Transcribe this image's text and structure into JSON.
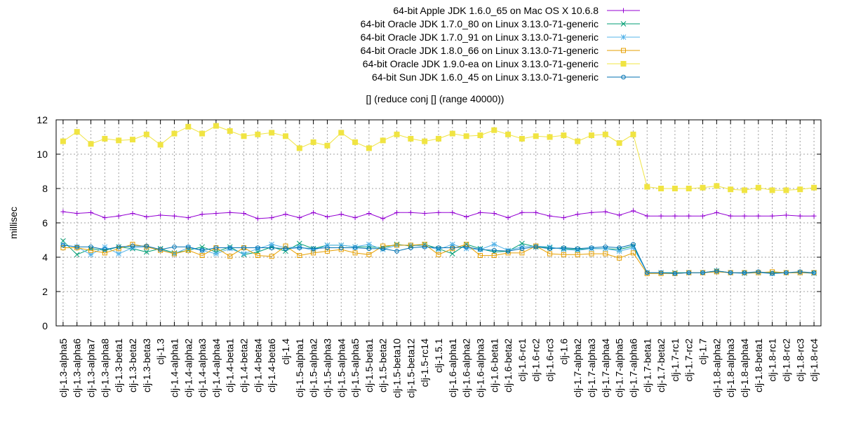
{
  "chart_data": {
    "type": "line",
    "title": "[] (reduce conj [] (range 40000))",
    "xlabel": "",
    "ylabel": "millisec",
    "ylim": [
      0,
      12
    ],
    "yticks": [
      0,
      2,
      4,
      6,
      8,
      10,
      12
    ],
    "grid": true,
    "legend_position": "top-right",
    "categories": [
      "clj-1.3-alpha5",
      "clj-1.3-alpha6",
      "clj-1.3-alpha7",
      "clj-1.3-alpha8",
      "clj-1.3-beta1",
      "clj-1.3-beta2",
      "clj-1.3-beta3",
      "clj-1.3",
      "clj-1.4-alpha1",
      "clj-1.4-alpha2",
      "clj-1.4-alpha3",
      "clj-1.4-alpha4",
      "clj-1.4-beta1",
      "clj-1.4-beta2",
      "clj-1.4-beta4",
      "clj-1.4-beta6",
      "clj-1.4",
      "clj-1.5-alpha1",
      "clj-1.5-alpha2",
      "clj-1.5-alpha3",
      "clj-1.5-alpha4",
      "clj-1.5-alpha5",
      "clj-1.5-beta1",
      "clj-1.5-beta2",
      "clj-1.5-beta10",
      "clj-1.5-beta12",
      "clj-1.5-rc14",
      "clj-1.5.1",
      "clj-1.6-alpha1",
      "clj-1.6-alpha2",
      "clj-1.6-alpha3",
      "clj-1.6-beta1",
      "clj-1.6-beta2",
      "clj-1.6-rc1",
      "clj-1.6-rc2",
      "clj-1.6-rc3",
      "clj-1.6",
      "clj-1.7-alpha2",
      "clj-1.7-alpha3",
      "clj-1.7-alpha4",
      "clj-1.7-alpha5",
      "clj-1.7-alpha6",
      "clj-1.7-beta1",
      "clj-1.7-beta2",
      "clj-1.7-rc1",
      "clj-1.7-rc2",
      "clj-1.7",
      "clj-1.8-alpha2",
      "clj-1.8-alpha3",
      "clj-1.8-alpha4",
      "clj-1.8-beta1",
      "clj-1.8-rc1",
      "clj-1.8-rc2",
      "clj-1.8-rc3",
      "clj-1.8-rc4"
    ],
    "series": [
      {
        "name": "64-bit Apple JDK 1.6.0_65 on Mac OS X 10.6.8",
        "color": "#9400d3",
        "marker": "plus",
        "values": [
          6.65,
          6.55,
          6.6,
          6.3,
          6.4,
          6.55,
          6.35,
          6.45,
          6.4,
          6.3,
          6.5,
          6.55,
          6.6,
          6.55,
          6.25,
          6.3,
          6.5,
          6.3,
          6.6,
          6.35,
          6.5,
          6.3,
          6.55,
          6.25,
          6.6,
          6.6,
          6.55,
          6.6,
          6.6,
          6.35,
          6.6,
          6.55,
          6.3,
          6.6,
          6.6,
          6.4,
          6.3,
          6.5,
          6.6,
          6.65,
          6.45,
          6.7,
          6.4,
          6.4,
          6.4,
          6.4,
          6.4,
          6.6,
          6.4,
          6.4,
          6.4,
          6.4,
          6.45,
          6.4,
          6.4
        ]
      },
      {
        "name": "64-bit Oracle JDK 1.7.0_80 on Linux 3.13.0-71-generic",
        "color": "#009e73",
        "marker": "x",
        "values": [
          4.95,
          4.15,
          4.5,
          4.4,
          4.6,
          4.5,
          4.3,
          4.5,
          4.25,
          4.4,
          4.6,
          4.3,
          4.6,
          4.15,
          4.3,
          4.6,
          4.35,
          4.8,
          4.5,
          4.7,
          4.7,
          4.6,
          4.6,
          4.55,
          4.75,
          4.65,
          4.75,
          4.5,
          4.2,
          4.75,
          4.5,
          4.3,
          4.35,
          4.8,
          4.6,
          4.55,
          4.5,
          4.45,
          4.5,
          4.5,
          4.45,
          4.65,
          3.1,
          3.1,
          3.1,
          3.1,
          3.1,
          3.2,
          3.1,
          3.1,
          3.1,
          3.1,
          3.1,
          3.1,
          3.1
        ]
      },
      {
        "name": "64-bit Oracle JDK 1.7.0_91 on Linux 3.13.0-71-generic",
        "color": "#56b4e9",
        "marker": "star",
        "values": [
          4.7,
          4.6,
          4.15,
          4.6,
          4.2,
          4.55,
          4.6,
          4.45,
          4.2,
          4.55,
          4.4,
          4.2,
          4.5,
          4.2,
          4.5,
          4.75,
          4.55,
          4.6,
          4.4,
          4.7,
          4.7,
          4.6,
          4.75,
          4.45,
          4.7,
          4.7,
          4.65,
          4.45,
          4.75,
          4.5,
          4.45,
          4.75,
          4.4,
          4.6,
          4.65,
          4.6,
          4.45,
          4.4,
          4.5,
          4.5,
          4.35,
          4.55,
          3.1,
          3.1,
          3.05,
          3.1,
          3.1,
          3.15,
          3.1,
          3.05,
          3.1,
          3.05,
          3.1,
          3.1,
          3.05
        ]
      },
      {
        "name": "64-bit Oracle JDK 1.8.0_66 on Linux 3.13.0-71-generic",
        "color": "#e69f00",
        "marker": "open-square",
        "values": [
          4.55,
          4.55,
          4.4,
          4.25,
          4.5,
          4.75,
          4.6,
          4.4,
          4.2,
          4.4,
          4.1,
          4.55,
          4.05,
          4.55,
          4.1,
          4.05,
          4.65,
          4.1,
          4.25,
          4.35,
          4.45,
          4.25,
          4.15,
          4.65,
          4.7,
          4.7,
          4.75,
          4.15,
          4.5,
          4.75,
          4.1,
          4.1,
          4.25,
          4.25,
          4.65,
          4.2,
          4.15,
          4.15,
          4.2,
          4.2,
          3.95,
          4.25,
          3.05,
          3.05,
          3.05,
          3.1,
          3.1,
          3.15,
          3.1,
          3.1,
          3.1,
          3.15,
          3.1,
          3.1,
          3.1
        ]
      },
      {
        "name": "64-bit Oracle JDK 1.9.0-ea on Linux 3.13.0-71-generic",
        "color": "#f0e442",
        "marker": "filled-square",
        "values": [
          10.75,
          11.3,
          10.6,
          10.9,
          10.8,
          10.85,
          11.15,
          10.55,
          11.2,
          11.6,
          11.2,
          11.65,
          11.35,
          11.05,
          11.15,
          11.25,
          11.05,
          10.35,
          10.7,
          10.5,
          11.25,
          10.7,
          10.35,
          10.8,
          11.15,
          10.9,
          10.75,
          10.9,
          11.2,
          11.05,
          11.1,
          11.4,
          11.15,
          10.9,
          11.05,
          11.0,
          11.1,
          10.75,
          11.1,
          11.15,
          10.65,
          11.15,
          8.1,
          8.0,
          8.0,
          8.0,
          8.05,
          8.15,
          7.95,
          7.9,
          8.05,
          7.9,
          7.9,
          7.95,
          8.05
        ]
      },
      {
        "name": "64-bit Sun JDK 1.6.0_45 on Linux 3.13.0-71-generic",
        "color": "#0072b2",
        "marker": "open-circle",
        "values": [
          4.7,
          4.6,
          4.6,
          4.45,
          4.6,
          4.65,
          4.65,
          4.45,
          4.6,
          4.6,
          4.4,
          4.55,
          4.55,
          4.55,
          4.55,
          4.55,
          4.5,
          4.55,
          4.5,
          4.55,
          4.55,
          4.55,
          4.5,
          4.5,
          4.35,
          4.55,
          4.6,
          4.55,
          4.55,
          4.6,
          4.45,
          4.4,
          4.35,
          4.5,
          4.6,
          4.5,
          4.55,
          4.5,
          4.55,
          4.6,
          4.55,
          4.75,
          3.1,
          3.1,
          3.05,
          3.1,
          3.1,
          3.2,
          3.1,
          3.1,
          3.15,
          3.05,
          3.1,
          3.15,
          3.1
        ]
      }
    ]
  }
}
